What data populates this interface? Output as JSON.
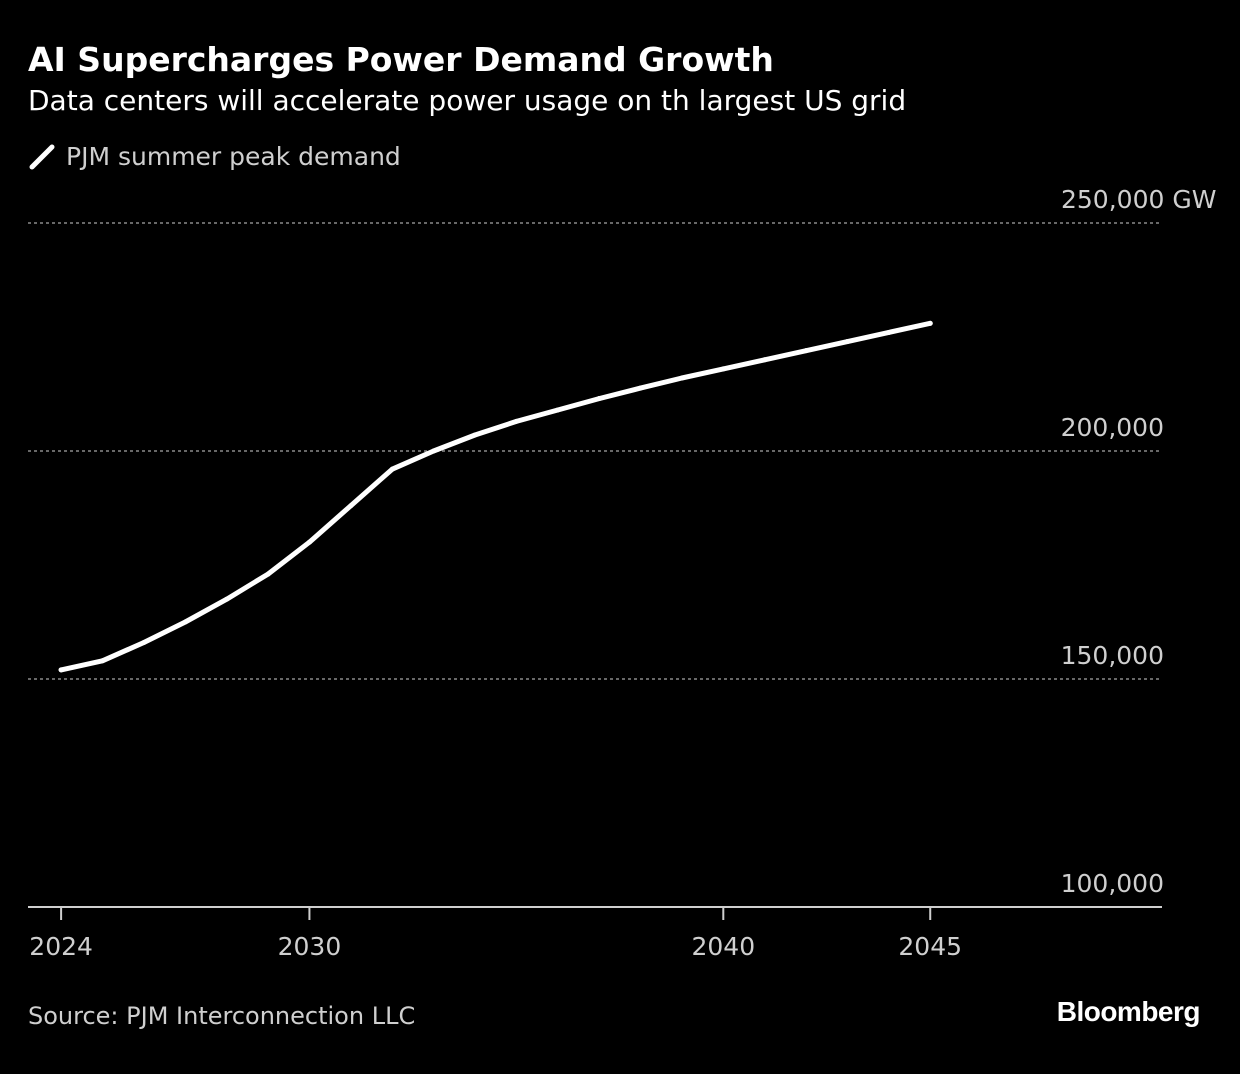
{
  "header": {
    "title": "AI Supercharges Power Demand Growth",
    "subtitle": "Data centers will accelerate power usage on th largest US grid"
  },
  "legend": {
    "label": "PJM summer peak demand"
  },
  "footer": {
    "source": "Source: PJM Interconnection LLC",
    "brand": "Bloomberg"
  },
  "colors": {
    "background": "#000000",
    "line": "#ffffff",
    "grid": "#8a8a8a",
    "axis": "#cfcfcf",
    "muted_text": "#cfcfcf"
  },
  "chart_data": {
    "type": "line",
    "title": "AI Supercharges Power Demand Growth",
    "subtitle": "Data centers will accelerate power usage on th largest US grid",
    "xlabel": "",
    "ylabel": "",
    "xlim": [
      2023.2,
      2050.6
    ],
    "ylim": [
      100000,
      250000
    ],
    "x_ticks": [
      2024,
      2030,
      2040,
      2045
    ],
    "x_tick_labels": [
      "2024",
      "2030",
      "2040",
      "2045"
    ],
    "y_ticks": [
      100000,
      150000,
      200000,
      250000
    ],
    "y_tick_labels": [
      "100,000",
      "150,000",
      "200,000",
      "250,000 GW"
    ],
    "grid": "horizontal dotted",
    "legend_position": "top-left",
    "series": [
      {
        "name": "PJM summer peak demand",
        "x": [
          2024,
          2025,
          2026,
          2027,
          2028,
          2029,
          2030,
          2031,
          2032,
          2033,
          2034,
          2035,
          2036,
          2037,
          2038,
          2039,
          2040,
          2041,
          2042,
          2043,
          2044,
          2045
        ],
        "values": [
          152000,
          154000,
          158000,
          162500,
          167500,
          173000,
          180000,
          188000,
          196000,
          200000,
          203500,
          206500,
          209000,
          211500,
          213800,
          216000,
          218000,
          220000,
          222000,
          224000,
          226000,
          228000
        ]
      }
    ]
  }
}
